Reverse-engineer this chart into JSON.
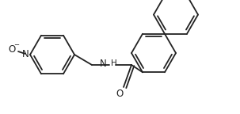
{
  "bg_color": "#ffffff",
  "line_color": "#222222",
  "line_width": 1.3,
  "font_size": 8.0,
  "figsize": [
    3.03,
    1.44
  ],
  "dpi": 100,
  "xlim": [
    0,
    303
  ],
  "ylim": [
    0,
    144
  ]
}
